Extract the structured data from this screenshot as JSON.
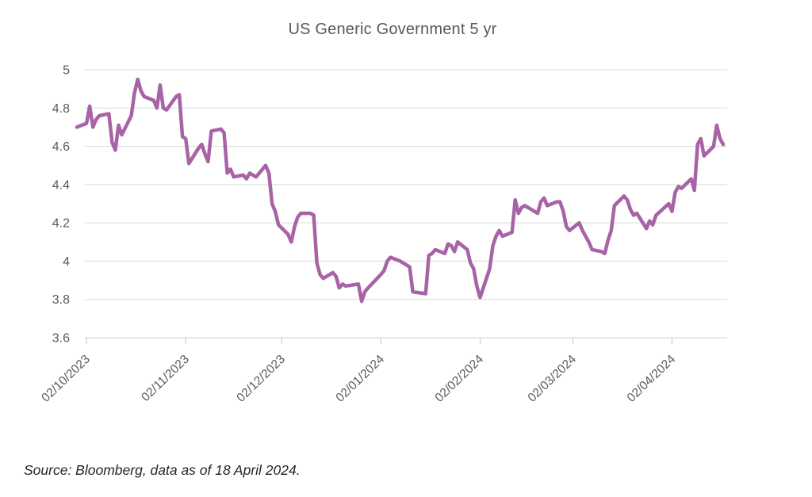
{
  "source_note": "Source: Bloomberg, data as of 18 April 2024.",
  "chart_data": {
    "type": "line",
    "title": "US Generic Government 5 yr",
    "xlabel": "",
    "ylabel": "",
    "ylim": [
      3.6,
      5.0
    ],
    "grid": true,
    "legend": "none",
    "line_color": "#A763A6",
    "y_ticks": [
      {
        "label": "5",
        "value": 5.0
      },
      {
        "label": "4.8",
        "value": 4.8
      },
      {
        "label": "4.6",
        "value": 4.6
      },
      {
        "label": "4.4",
        "value": 4.4
      },
      {
        "label": "4.2",
        "value": 4.2
      },
      {
        "label": "4",
        "value": 4.0
      },
      {
        "label": "3.8",
        "value": 3.8
      },
      {
        "label": "3.6",
        "value": 3.6
      }
    ],
    "x_ticks": [
      {
        "label": "02/10/2023",
        "date": "2023-10-02"
      },
      {
        "label": "02/11/2023",
        "date": "2023-11-02"
      },
      {
        "label": "02/12/2023",
        "date": "2023-12-02"
      },
      {
        "label": "02/01/2024",
        "date": "2024-01-02"
      },
      {
        "label": "02/02/2024",
        "date": "2024-02-02"
      },
      {
        "label": "02/03/2024",
        "date": "2024-03-02"
      },
      {
        "label": "02/04/2024",
        "date": "2024-04-02"
      }
    ],
    "series": [
      {
        "name": "US Generic Government 5 yr",
        "dates": [
          "2023-09-29",
          "2023-10-02",
          "2023-10-03",
          "2023-10-04",
          "2023-10-05",
          "2023-10-06",
          "2023-10-09",
          "2023-10-10",
          "2023-10-11",
          "2023-10-12",
          "2023-10-13",
          "2023-10-16",
          "2023-10-17",
          "2023-10-18",
          "2023-10-19",
          "2023-10-20",
          "2023-10-23",
          "2023-10-24",
          "2023-10-25",
          "2023-10-26",
          "2023-10-27",
          "2023-10-30",
          "2023-10-31",
          "2023-11-01",
          "2023-11-02",
          "2023-11-03",
          "2023-11-06",
          "2023-11-07",
          "2023-11-08",
          "2023-11-09",
          "2023-11-10",
          "2023-11-13",
          "2023-11-14",
          "2023-11-15",
          "2023-11-16",
          "2023-11-17",
          "2023-11-20",
          "2023-11-21",
          "2023-11-22",
          "2023-11-24",
          "2023-11-27",
          "2023-11-28",
          "2023-11-29",
          "2023-11-30",
          "2023-12-01",
          "2023-12-04",
          "2023-12-05",
          "2023-12-06",
          "2023-12-07",
          "2023-12-08",
          "2023-12-11",
          "2023-12-12",
          "2023-12-13",
          "2023-12-14",
          "2023-12-15",
          "2023-12-18",
          "2023-12-19",
          "2023-12-20",
          "2023-12-21",
          "2023-12-22",
          "2023-12-26",
          "2023-12-27",
          "2023-12-28",
          "2023-12-29",
          "2024-01-02",
          "2024-01-03",
          "2024-01-04",
          "2024-01-05",
          "2024-01-08",
          "2024-01-09",
          "2024-01-10",
          "2024-01-11",
          "2024-01-12",
          "2024-01-16",
          "2024-01-17",
          "2024-01-18",
          "2024-01-19",
          "2024-01-22",
          "2024-01-23",
          "2024-01-24",
          "2024-01-25",
          "2024-01-26",
          "2024-01-29",
          "2024-01-30",
          "2024-01-31",
          "2024-02-01",
          "2024-02-02",
          "2024-02-05",
          "2024-02-06",
          "2024-02-07",
          "2024-02-08",
          "2024-02-09",
          "2024-02-12",
          "2024-02-13",
          "2024-02-14",
          "2024-02-15",
          "2024-02-16",
          "2024-02-20",
          "2024-02-21",
          "2024-02-22",
          "2024-02-23",
          "2024-02-26",
          "2024-02-27",
          "2024-02-28",
          "2024-02-29",
          "2024-03-01",
          "2024-03-04",
          "2024-03-05",
          "2024-03-06",
          "2024-03-07",
          "2024-03-08",
          "2024-03-11",
          "2024-03-12",
          "2024-03-13",
          "2024-03-14",
          "2024-03-15",
          "2024-03-18",
          "2024-03-19",
          "2024-03-20",
          "2024-03-21",
          "2024-03-22",
          "2024-03-25",
          "2024-03-26",
          "2024-03-27",
          "2024-03-28",
          "2024-04-01",
          "2024-04-02",
          "2024-04-03",
          "2024-04-04",
          "2024-04-05",
          "2024-04-08",
          "2024-04-09",
          "2024-04-10",
          "2024-04-11",
          "2024-04-12",
          "2024-04-15",
          "2024-04-16",
          "2024-04-17",
          "2024-04-18"
        ],
        "values": [
          4.7,
          4.72,
          4.81,
          4.7,
          4.74,
          4.76,
          4.77,
          4.62,
          4.58,
          4.71,
          4.66,
          4.76,
          4.88,
          4.95,
          4.89,
          4.86,
          4.84,
          4.8,
          4.92,
          4.8,
          4.79,
          4.86,
          4.87,
          4.65,
          4.64,
          4.51,
          4.59,
          4.61,
          4.56,
          4.52,
          4.68,
          4.69,
          4.67,
          4.46,
          4.48,
          4.44,
          4.45,
          4.43,
          4.46,
          4.44,
          4.5,
          4.46,
          4.3,
          4.26,
          4.19,
          4.14,
          4.1,
          4.18,
          4.23,
          4.25,
          4.25,
          4.24,
          3.99,
          3.93,
          3.91,
          3.94,
          3.92,
          3.86,
          3.88,
          3.87,
          3.88,
          3.79,
          3.84,
          3.86,
          3.93,
          3.95,
          4.0,
          4.02,
          4.0,
          3.99,
          3.98,
          3.97,
          3.84,
          3.83,
          4.03,
          4.04,
          4.06,
          4.04,
          4.09,
          4.08,
          4.05,
          4.1,
          4.06,
          3.99,
          3.96,
          3.87,
          3.81,
          3.96,
          4.08,
          4.13,
          4.16,
          4.13,
          4.15,
          4.32,
          4.25,
          4.28,
          4.29,
          4.25,
          4.31,
          4.33,
          4.29,
          4.31,
          4.31,
          4.26,
          4.18,
          4.16,
          4.2,
          4.16,
          4.13,
          4.1,
          4.06,
          4.05,
          4.04,
          4.11,
          4.16,
          4.29,
          4.34,
          4.32,
          4.27,
          4.24,
          4.25,
          4.17,
          4.21,
          4.19,
          4.24,
          4.3,
          4.26,
          4.36,
          4.39,
          4.38,
          4.43,
          4.37,
          4.61,
          4.64,
          4.55,
          4.6,
          4.71,
          4.64,
          4.61
        ]
      }
    ]
  }
}
